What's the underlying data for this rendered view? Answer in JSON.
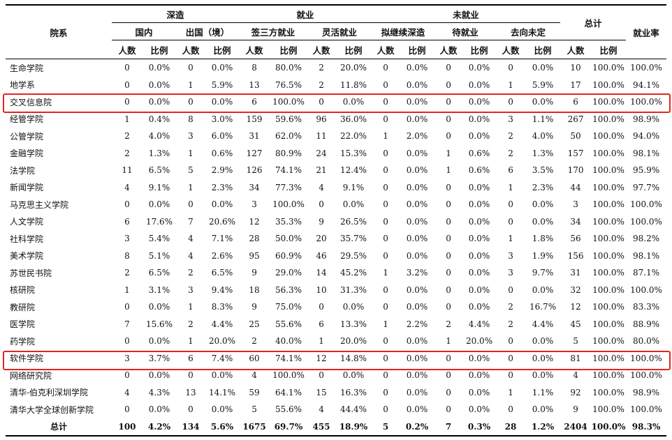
{
  "headers": {
    "college": "院系",
    "further_study": "深造",
    "employed": "就业",
    "unemployed": "未就业",
    "total": "总计",
    "employment_rate": "就业率",
    "domestic": "国内",
    "abroad": "出国（境）",
    "signed_third_party": "签三方就业",
    "flexible": "灵活就业",
    "planning_study": "拟继续深造",
    "waiting": "待就业",
    "undecided": "去向未定",
    "count": "人数",
    "ratio": "比例"
  },
  "rows": [
    [
      "生命学院",
      "0",
      "0.0%",
      "0",
      "0.0%",
      "8",
      "80.0%",
      "2",
      "20.0%",
      "0",
      "0.0%",
      "0",
      "0.0%",
      "0",
      "0.0%",
      "10",
      "100.0%",
      "100.0%"
    ],
    [
      "地学系",
      "0",
      "0.0%",
      "1",
      "5.9%",
      "13",
      "76.5%",
      "2",
      "11.8%",
      "0",
      "0.0%",
      "0",
      "0.0%",
      "1",
      "5.9%",
      "17",
      "100.0%",
      "94.1%"
    ],
    [
      "交叉信息院",
      "0",
      "0.0%",
      "0",
      "0.0%",
      "6",
      "100.0%",
      "0",
      "0.0%",
      "0",
      "0.0%",
      "0",
      "0.0%",
      "0",
      "0.0%",
      "6",
      "100.0%",
      "100.0%"
    ],
    [
      "经管学院",
      "1",
      "0.4%",
      "8",
      "3.0%",
      "159",
      "59.6%",
      "96",
      "36.0%",
      "0",
      "0.0%",
      "0",
      "0.0%",
      "3",
      "1.1%",
      "267",
      "100.0%",
      "98.9%"
    ],
    [
      "公管学院",
      "2",
      "4.0%",
      "3",
      "6.0%",
      "31",
      "62.0%",
      "11",
      "22.0%",
      "1",
      "2.0%",
      "0",
      "0.0%",
      "2",
      "4.0%",
      "50",
      "100.0%",
      "94.0%"
    ],
    [
      "金融学院",
      "2",
      "1.3%",
      "1",
      "0.6%",
      "127",
      "80.9%",
      "24",
      "15.3%",
      "0",
      "0.0%",
      "1",
      "0.6%",
      "2",
      "1.3%",
      "157",
      "100.0%",
      "98.1%"
    ],
    [
      "法学院",
      "11",
      "6.5%",
      "5",
      "2.9%",
      "126",
      "74.1%",
      "21",
      "12.4%",
      "0",
      "0.0%",
      "1",
      "0.6%",
      "6",
      "3.5%",
      "170",
      "100.0%",
      "95.9%"
    ],
    [
      "新闻学院",
      "4",
      "9.1%",
      "1",
      "2.3%",
      "34",
      "77.3%",
      "4",
      "9.1%",
      "0",
      "0.0%",
      "0",
      "0.0%",
      "1",
      "2.3%",
      "44",
      "100.0%",
      "97.7%"
    ],
    [
      "马克思主义学院",
      "0",
      "0.0%",
      "0",
      "0.0%",
      "3",
      "100.0%",
      "0",
      "0.0%",
      "0",
      "0.0%",
      "0",
      "0.0%",
      "0",
      "0.0%",
      "3",
      "100.0%",
      "100.0%"
    ],
    [
      "人文学院",
      "6",
      "17.6%",
      "7",
      "20.6%",
      "12",
      "35.3%",
      "9",
      "26.5%",
      "0",
      "0.0%",
      "0",
      "0.0%",
      "0",
      "0.0%",
      "34",
      "100.0%",
      "100.0%"
    ],
    [
      "社科学院",
      "3",
      "5.4%",
      "4",
      "7.1%",
      "28",
      "50.0%",
      "20",
      "35.7%",
      "0",
      "0.0%",
      "0",
      "0.0%",
      "1",
      "1.8%",
      "56",
      "100.0%",
      "98.2%"
    ],
    [
      "美术学院",
      "8",
      "5.1%",
      "4",
      "2.6%",
      "95",
      "60.9%",
      "46",
      "29.5%",
      "0",
      "0.0%",
      "0",
      "0.0%",
      "3",
      "1.9%",
      "156",
      "100.0%",
      "98.1%"
    ],
    [
      "苏世民书院",
      "2",
      "6.5%",
      "2",
      "6.5%",
      "9",
      "29.0%",
      "14",
      "45.2%",
      "1",
      "3.2%",
      "0",
      "0.0%",
      "3",
      "9.7%",
      "31",
      "100.0%",
      "87.1%"
    ],
    [
      "核研院",
      "1",
      "3.1%",
      "3",
      "9.4%",
      "18",
      "56.3%",
      "10",
      "31.3%",
      "0",
      "0.0%",
      "0",
      "0.0%",
      "0",
      "0.0%",
      "32",
      "100.0%",
      "100.0%"
    ],
    [
      "教研院",
      "0",
      "0.0%",
      "1",
      "8.3%",
      "9",
      "75.0%",
      "0",
      "0.0%",
      "0",
      "0.0%",
      "0",
      "0.0%",
      "2",
      "16.7%",
      "12",
      "100.0%",
      "83.3%"
    ],
    [
      "医学院",
      "7",
      "15.6%",
      "2",
      "4.4%",
      "25",
      "55.6%",
      "6",
      "13.3%",
      "1",
      "2.2%",
      "2",
      "4.4%",
      "2",
      "4.4%",
      "45",
      "100.0%",
      "88.9%"
    ],
    [
      "药学院",
      "0",
      "0.0%",
      "1",
      "20.0%",
      "2",
      "40.0%",
      "1",
      "20.0%",
      "0",
      "0.0%",
      "1",
      "20.0%",
      "0",
      "0.0%",
      "5",
      "100.0%",
      "80.0%"
    ],
    [
      "软件学院",
      "3",
      "3.7%",
      "6",
      "7.4%",
      "60",
      "74.1%",
      "12",
      "14.8%",
      "0",
      "0.0%",
      "0",
      "0.0%",
      "0",
      "0.0%",
      "81",
      "100.0%",
      "100.0%"
    ],
    [
      "网络研究院",
      "0",
      "0.0%",
      "0",
      "0.0%",
      "4",
      "100.0%",
      "0",
      "0.0%",
      "0",
      "0.0%",
      "0",
      "0.0%",
      "0",
      "0.0%",
      "4",
      "100.0%",
      "100.0%"
    ],
    [
      "清华-伯克利深圳学院",
      "4",
      "4.3%",
      "13",
      "14.1%",
      "59",
      "64.1%",
      "15",
      "16.3%",
      "0",
      "0.0%",
      "0",
      "0.0%",
      "1",
      "1.1%",
      "92",
      "100.0%",
      "98.9%"
    ],
    [
      "清华大学全球创新学院",
      "0",
      "0.0%",
      "0",
      "0.0%",
      "5",
      "55.6%",
      "4",
      "44.4%",
      "0",
      "0.0%",
      "0",
      "0.0%",
      "0",
      "0.0%",
      "9",
      "100.0%",
      "100.0%"
    ]
  ],
  "totals": [
    "总计",
    "100",
    "4.2%",
    "134",
    "5.6%",
    "1675",
    "69.7%",
    "455",
    "18.9%",
    "5",
    "0.2%",
    "7",
    "0.3%",
    "28",
    "1.2%",
    "2404",
    "100.0%",
    "98.3%"
  ],
  "highlight_color": "#e3241f"
}
